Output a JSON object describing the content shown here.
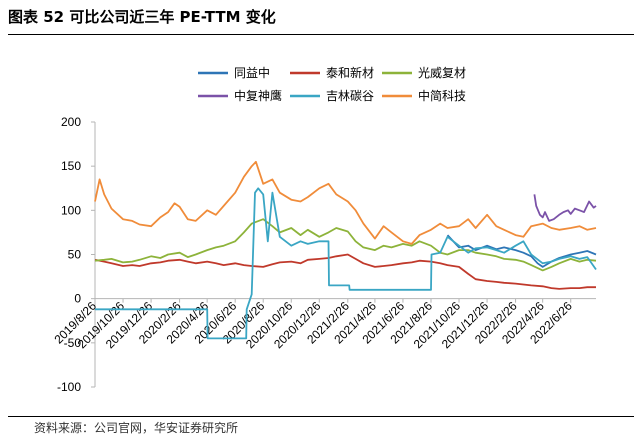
{
  "title": "图表 52 可比公司近三年 PE-TTM 变化",
  "source": "资料来源：公司官网，华安证券研究所",
  "chart_data": {
    "type": "line",
    "x_tick_labels": [
      "2019/8/26",
      "2019/10/26",
      "2019/12/26",
      "2020/2/26",
      "2020/4/26",
      "2020/6/26",
      "2020/8/26",
      "2020/10/26",
      "2020/12/26",
      "2021/2/26",
      "2021/4/26",
      "2021/6/26",
      "2021/8/26",
      "2021/10/26",
      "2021/12/26",
      "2022/2/26",
      "2022/4/26",
      "2022/6/26"
    ],
    "y_ticks": [
      -100,
      -50,
      0,
      50,
      100,
      150,
      200
    ],
    "ylim": [
      -100,
      200
    ],
    "legend_position": "top",
    "series": [
      {
        "name": "同益中",
        "color": "#2e75b6",
        "x": [
          "2021/10/1",
          "2021/10/26",
          "2021/11/15",
          "2021/12/1",
          "2021/12/26",
          "2022/1/15",
          "2022/2/1",
          "2022/2/26",
          "2022/3/15",
          "2022/4/1",
          "2022/4/15",
          "2022/4/26",
          "2022/5/15",
          "2022/6/1",
          "2022/6/26",
          "2022/7/15",
          "2022/8/1",
          "2022/8/20"
        ],
        "values": [
          72,
          58,
          60,
          55,
          60,
          56,
          58,
          55,
          52,
          48,
          40,
          36,
          42,
          46,
          50,
          52,
          54,
          50
        ]
      },
      {
        "name": "泰和新材",
        "color": "#c0392b",
        "x": [
          "2019/8/26",
          "2019/9/15",
          "2019/10/1",
          "2019/10/26",
          "2019/11/15",
          "2019/12/1",
          "2019/12/26",
          "2020/1/15",
          "2020/2/1",
          "2020/2/26",
          "2020/3/15",
          "2020/4/1",
          "2020/4/26",
          "2020/5/15",
          "2020/6/1",
          "2020/6/26",
          "2020/7/15",
          "2020/8/1",
          "2020/8/26",
          "2020/9/15",
          "2020/10/1",
          "2020/10/26",
          "2020/11/15",
          "2020/12/1",
          "2020/12/26",
          "2021/1/15",
          "2021/2/1",
          "2021/2/26",
          "2021/3/15",
          "2021/4/1",
          "2021/4/26",
          "2021/5/15",
          "2021/6/1",
          "2021/6/26",
          "2021/7/15",
          "2021/8/1",
          "2021/8/26",
          "2021/9/15",
          "2021/10/1",
          "2021/10/26",
          "2021/11/15",
          "2021/12/1",
          "2021/12/26",
          "2022/1/15",
          "2022/2/1",
          "2022/2/26",
          "2022/3/15",
          "2022/4/1",
          "2022/4/26",
          "2022/5/15",
          "2022/6/1",
          "2022/6/26",
          "2022/7/15",
          "2022/8/1",
          "2022/8/20"
        ],
        "values": [
          44,
          42,
          40,
          37,
          38,
          37,
          40,
          41,
          43,
          44,
          42,
          40,
          42,
          40,
          38,
          40,
          38,
          37,
          36,
          39,
          41,
          42,
          40,
          44,
          45,
          46,
          48,
          50,
          45,
          40,
          36,
          37,
          38,
          40,
          41,
          43,
          42,
          40,
          38,
          36,
          28,
          22,
          20,
          19,
          18,
          17,
          16,
          15,
          14,
          12,
          11,
          12,
          12,
          13,
          13
        ]
      },
      {
        "name": "光威复材",
        "color": "#8db33a",
        "x": [
          "2019/8/26",
          "2019/9/15",
          "2019/10/1",
          "2019/10/26",
          "2019/11/15",
          "2019/12/1",
          "2019/12/26",
          "2020/1/15",
          "2020/2/1",
          "2020/2/26",
          "2020/3/15",
          "2020/4/1",
          "2020/4/26",
          "2020/5/15",
          "2020/6/1",
          "2020/6/26",
          "2020/7/15",
          "2020/8/1",
          "2020/8/26",
          "2020/9/15",
          "2020/10/1",
          "2020/10/26",
          "2020/11/15",
          "2020/12/1",
          "2020/12/26",
          "2021/1/15",
          "2021/2/1",
          "2021/2/26",
          "2021/3/15",
          "2021/4/1",
          "2021/4/26",
          "2021/5/15",
          "2021/6/1",
          "2021/6/26",
          "2021/7/15",
          "2021/8/1",
          "2021/8/26",
          "2021/9/15",
          "2021/10/1",
          "2021/10/26",
          "2021/11/15",
          "2021/12/1",
          "2021/12/26",
          "2022/1/15",
          "2022/2/1",
          "2022/2/26",
          "2022/3/15",
          "2022/4/1",
          "2022/4/26",
          "2022/5/15",
          "2022/6/1",
          "2022/6/26",
          "2022/7/15",
          "2022/8/1",
          "2022/8/20"
        ],
        "values": [
          43,
          44,
          45,
          41,
          42,
          44,
          48,
          46,
          50,
          52,
          47,
          50,
          55,
          58,
          60,
          65,
          75,
          85,
          90,
          82,
          75,
          80,
          72,
          78,
          70,
          75,
          80,
          76,
          65,
          58,
          55,
          60,
          58,
          62,
          60,
          65,
          60,
          52,
          50,
          55,
          55,
          52,
          50,
          48,
          45,
          44,
          42,
          38,
          32,
          36,
          40,
          45,
          42,
          44,
          43
        ]
      },
      {
        "name": "中复神鹰",
        "color": "#7b52a8",
        "x": [
          "2022/4/8",
          "2022/4/12",
          "2022/4/20",
          "2022/4/26",
          "2022/5/1",
          "2022/5/10",
          "2022/5/20",
          "2022/6/1",
          "2022/6/10",
          "2022/6/20",
          "2022/6/26",
          "2022/7/5",
          "2022/7/15",
          "2022/7/25",
          "2022/8/5",
          "2022/8/15",
          "2022/8/20"
        ],
        "values": [
          118,
          105,
          95,
          92,
          98,
          88,
          90,
          95,
          98,
          100,
          96,
          102,
          100,
          98,
          110,
          103,
          105
        ]
      },
      {
        "name": "吉林碳谷",
        "color": "#3aa6c4",
        "x": [
          "2019/8/26",
          "2020/4/26",
          "2020/4/27",
          "2020/7/20",
          "2020/7/21",
          "2020/8/1",
          "2020/8/8",
          "2020/8/15",
          "2020/8/26",
          "2020/9/5",
          "2020/9/15",
          "2020/10/1",
          "2020/10/26",
          "2020/11/15",
          "2020/12/1",
          "2020/12/26",
          "2021/1/15",
          "2021/1/16",
          "2021/3/1",
          "2021/3/2",
          "2021/8/26",
          "2021/8/27",
          "2021/9/15",
          "2021/10/1",
          "2021/10/26",
          "2021/11/15",
          "2021/12/1",
          "2021/12/26",
          "2022/1/15",
          "2022/2/1",
          "2022/2/26",
          "2022/3/15",
          "2022/4/1",
          "2022/4/26",
          "2022/5/15",
          "2022/6/1",
          "2022/6/26",
          "2022/7/15",
          "2022/8/1",
          "2022/8/20"
        ],
        "values": [
          -12,
          -12,
          -45,
          -45,
          -12,
          5,
          120,
          125,
          118,
          65,
          120,
          70,
          60,
          65,
          62,
          65,
          65,
          15,
          15,
          10,
          10,
          50,
          52,
          70,
          60,
          52,
          57,
          58,
          55,
          52,
          60,
          65,
          50,
          40,
          42,
          45,
          48,
          45,
          47,
          33
        ]
      },
      {
        "name": "中简科技",
        "color": "#f08c3a",
        "x": [
          "2019/8/26",
          "2019/9/5",
          "2019/9/15",
          "2019/10/1",
          "2019/10/26",
          "2019/11/15",
          "2019/12/1",
          "2019/12/26",
          "2020/1/15",
          "2020/2/1",
          "2020/2/15",
          "2020/2/26",
          "2020/3/15",
          "2020/4/1",
          "2020/4/26",
          "2020/5/15",
          "2020/6/1",
          "2020/6/26",
          "2020/7/15",
          "2020/8/1",
          "2020/8/10",
          "2020/8/26",
          "2020/9/15",
          "2020/10/1",
          "2020/10/26",
          "2020/11/15",
          "2020/12/1",
          "2020/12/26",
          "2021/1/15",
          "2021/2/1",
          "2021/2/26",
          "2021/3/15",
          "2021/4/1",
          "2021/4/26",
          "2021/5/15",
          "2021/6/1",
          "2021/6/26",
          "2021/7/15",
          "2021/8/1",
          "2021/8/26",
          "2021/9/15",
          "2021/10/1",
          "2021/10/26",
          "2021/11/15",
          "2021/12/1",
          "2021/12/26",
          "2022/1/15",
          "2022/2/1",
          "2022/2/26",
          "2022/3/15",
          "2022/4/1",
          "2022/4/26",
          "2022/5/15",
          "2022/6/1",
          "2022/6/26",
          "2022/7/15",
          "2022/8/1",
          "2022/8/20"
        ],
        "values": [
          110,
          135,
          118,
          102,
          90,
          88,
          84,
          82,
          92,
          98,
          108,
          104,
          90,
          88,
          100,
          95,
          105,
          120,
          138,
          150,
          155,
          130,
          135,
          120,
          112,
          110,
          115,
          125,
          130,
          118,
          110,
          100,
          85,
          68,
          82,
          75,
          65,
          62,
          72,
          78,
          85,
          80,
          82,
          90,
          80,
          95,
          82,
          78,
          72,
          70,
          82,
          85,
          80,
          78,
          80,
          82,
          78,
          80
        ]
      }
    ]
  }
}
